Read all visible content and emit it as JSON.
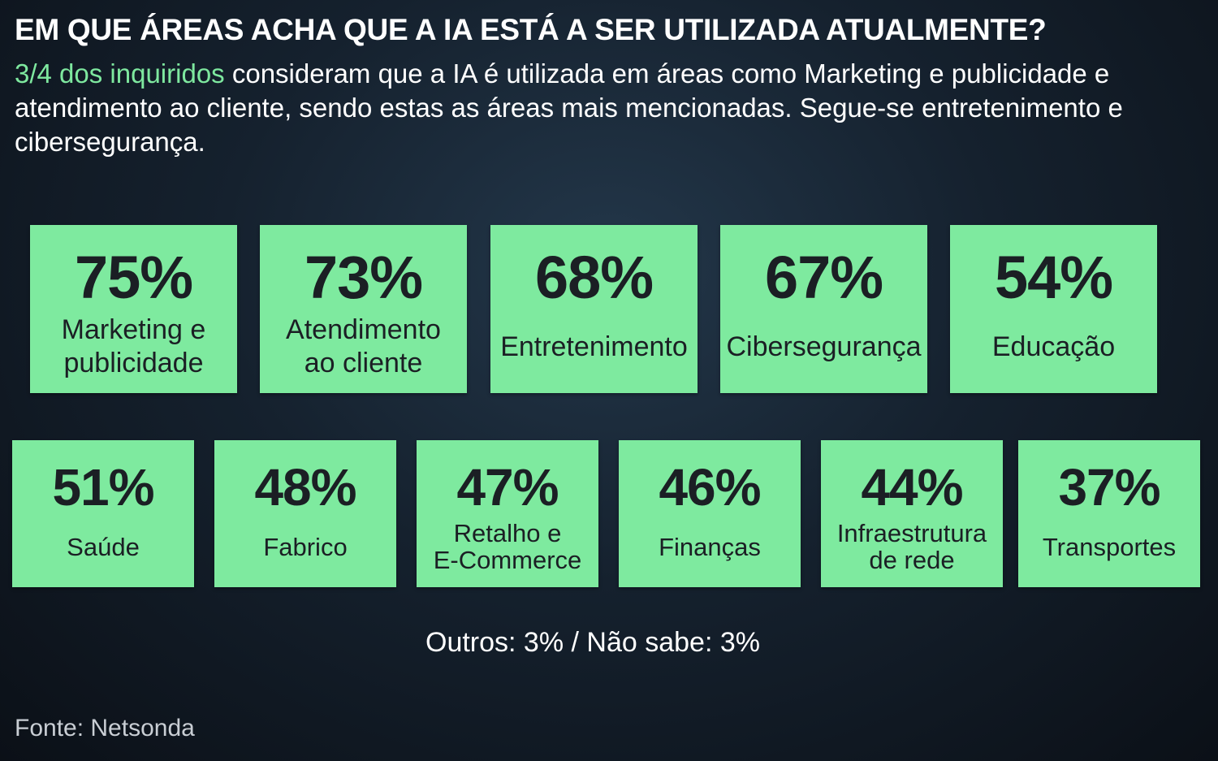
{
  "title": "EM QUE ÁREAS ACHA QUE A IA ESTÁ A SER UTILIZADA ATUALMENTE?",
  "subtitle": {
    "highlight": "3/4 dos inquiridos",
    "text": " consideram que a IA é utilizada em áreas como Marketing e publicidade e atendimento ao cliente, sendo estas as áreas mais mencionadas. Segue-se entretenimento e cibersegurança."
  },
  "colors": {
    "card_background": "#7eea9f",
    "highlight_text": "#7ee89f",
    "card_text": "#1b1f24",
    "background": "#15212e"
  },
  "cards_row1": [
    {
      "value": "75%",
      "label": "Marketing e\npublicidade"
    },
    {
      "value": "73%",
      "label": "Atendimento\nao cliente"
    },
    {
      "value": "68%",
      "label": "Entretenimento"
    },
    {
      "value": "67%",
      "label": "Cibersegurança"
    },
    {
      "value": "54%",
      "label": "Educação"
    }
  ],
  "cards_row2": [
    {
      "value": "51%",
      "label": "Saúde"
    },
    {
      "value": "48%",
      "label": "Fabrico"
    },
    {
      "value": "47%",
      "label": "Retalho e\nE-Commerce"
    },
    {
      "value": "46%",
      "label": "Finanças"
    },
    {
      "value": "44%",
      "label": "Infraestrutura\nde rede"
    },
    {
      "value": "37%",
      "label": "Transportes"
    }
  ],
  "others": "Outros: 3% / Não sabe: 3%",
  "source": "Fonte: Netsonda"
}
